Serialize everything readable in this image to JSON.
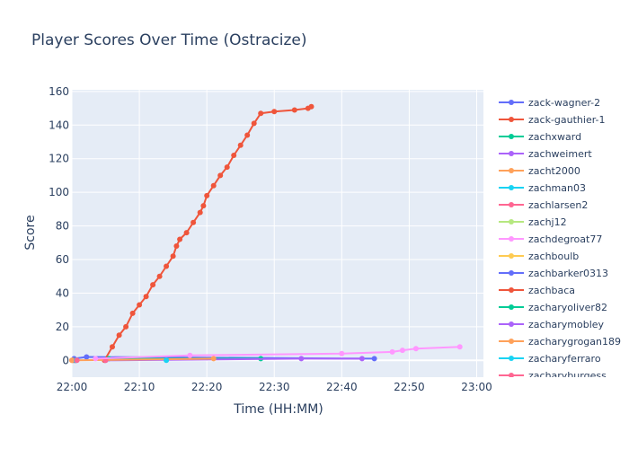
{
  "chart_data": {
    "type": "line",
    "title": "Player Scores Over Time (Ostracize)",
    "xlabel": "Time (HH:MM)",
    "ylabel": "Score",
    "xlim": [
      "22:00",
      "23:01"
    ],
    "ylim": [
      -10,
      161
    ],
    "x_ticks": [
      "22:00",
      "22:10",
      "22:20",
      "22:30",
      "22:40",
      "22:50",
      "23:00"
    ],
    "y_ticks": [
      0,
      20,
      40,
      60,
      80,
      100,
      120,
      140,
      160
    ],
    "grid": true,
    "legend_position": "right",
    "series": [
      {
        "name": "zack-wagner-2",
        "color": "#636efa",
        "mode": "lines+markers",
        "points": [
          [
            "22:00:20",
            1
          ],
          [
            "22:02:10",
            2
          ],
          [
            "22:44:50",
            1
          ]
        ]
      },
      {
        "name": "zack-gauthier-1",
        "color": "#ef553b",
        "mode": "lines+markers",
        "points": [
          [
            "22:04:50",
            0
          ],
          [
            "22:06:00",
            8
          ],
          [
            "22:07:00",
            15
          ],
          [
            "22:08:00",
            20
          ],
          [
            "22:09:00",
            28
          ],
          [
            "22:10:00",
            33
          ],
          [
            "22:11:00",
            38
          ],
          [
            "22:12:00",
            45
          ],
          [
            "22:13:00",
            50
          ],
          [
            "22:14:00",
            56
          ],
          [
            "22:15:00",
            62
          ],
          [
            "22:15:30",
            68
          ],
          [
            "22:16:00",
            72
          ],
          [
            "22:17:00",
            76
          ],
          [
            "22:18:00",
            82
          ],
          [
            "22:19:00",
            88
          ],
          [
            "22:19:30",
            92
          ],
          [
            "22:20:00",
            98
          ],
          [
            "22:21:00",
            104
          ],
          [
            "22:22:00",
            110
          ],
          [
            "22:23:00",
            115
          ],
          [
            "22:24:00",
            122
          ],
          [
            "22:25:00",
            128
          ],
          [
            "22:26:00",
            134
          ],
          [
            "22:27:00",
            141
          ],
          [
            "22:28:00",
            147
          ],
          [
            "22:30:00",
            148
          ],
          [
            "22:33:00",
            149
          ],
          [
            "22:35:00",
            150
          ],
          [
            "22:35:30",
            151
          ]
        ]
      },
      {
        "name": "zachxward",
        "color": "#00cc96",
        "mode": "lines+markers",
        "points": [
          [
            "22:05:30",
            1
          ],
          [
            "22:28:00",
            1
          ]
        ]
      },
      {
        "name": "zachweimert",
        "color": "#ab63fa",
        "mode": "lines+markers",
        "points": [
          [
            "22:05:00",
            0
          ],
          [
            "22:34:00",
            1
          ],
          [
            "22:43:00",
            1
          ]
        ]
      },
      {
        "name": "zacht2000",
        "color": "#ffa15a",
        "mode": "lines+markers",
        "points": [
          [
            "22:00:00",
            0
          ],
          [
            "22:21:00",
            1
          ]
        ]
      },
      {
        "name": "zachman03",
        "color": "#19d3f3",
        "mode": "lines+markers",
        "points": [
          [
            "22:14:00",
            0
          ]
        ]
      },
      {
        "name": "zachlarsen2",
        "color": "#ff6692",
        "mode": "lines+markers",
        "points": [
          [
            "22:05:00",
            0
          ]
        ]
      },
      {
        "name": "zachj12",
        "color": "#b6e880",
        "mode": "lines+markers",
        "points": [
          [
            "22:00:10",
            0
          ]
        ]
      },
      {
        "name": "zachdegroat77",
        "color": "#ff97ff",
        "mode": "lines+markers",
        "points": [
          [
            "22:03:30",
            1
          ],
          [
            "22:17:30",
            3
          ],
          [
            "22:40:00",
            4
          ],
          [
            "22:47:30",
            5
          ],
          [
            "22:49:00",
            6
          ],
          [
            "22:51:00",
            7
          ],
          [
            "22:57:30",
            8
          ]
        ]
      },
      {
        "name": "zachboulb",
        "color": "#fecb52",
        "mode": "lines+markers",
        "points": [
          [
            "22:00:05",
            0
          ]
        ]
      },
      {
        "name": "zachbarker0313",
        "color": "#636efa",
        "mode": "lines+markers",
        "points": [
          [
            "22:00:15",
            0
          ]
        ]
      },
      {
        "name": "zachbaca",
        "color": "#ef553b",
        "mode": "lines+markers",
        "points": [
          [
            "22:00:25",
            0
          ]
        ]
      },
      {
        "name": "zacharyoliver82",
        "color": "#00cc96",
        "mode": "lines+markers",
        "points": [
          [
            "22:00:30",
            0
          ]
        ]
      },
      {
        "name": "zacharymobley",
        "color": "#ab63fa",
        "mode": "lines+markers",
        "points": [
          [
            "22:00:35",
            0
          ]
        ]
      },
      {
        "name": "zacharygrogan189",
        "color": "#ffa15a",
        "mode": "lines+markers",
        "points": [
          [
            "22:00:00",
            0
          ]
        ]
      },
      {
        "name": "zacharyferraro",
        "color": "#19d3f3",
        "mode": "lines+markers",
        "points": [
          [
            "22:00:40",
            0
          ]
        ]
      },
      {
        "name": "zacharyburgess",
        "color": "#ff6692",
        "mode": "lines+markers",
        "points": [
          [
            "22:00:45",
            0
          ]
        ]
      }
    ]
  }
}
